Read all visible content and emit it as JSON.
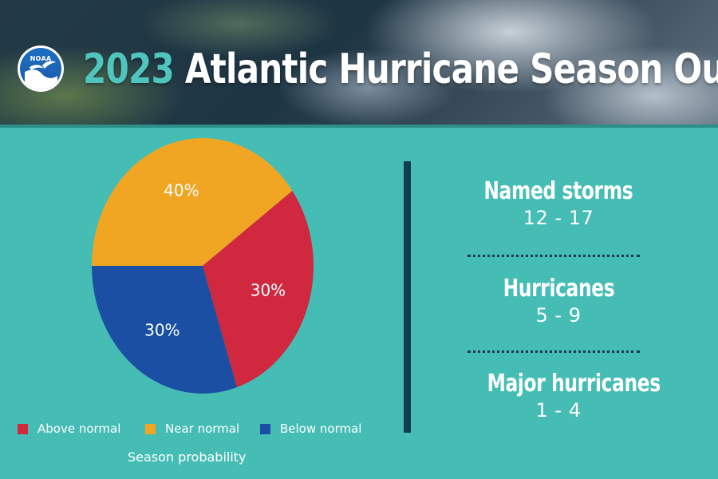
{
  "header": {
    "title_year": "2023",
    "title_rest": "Atlantic Hurricane Season Outlook",
    "logo_text": "NOAA"
  },
  "chart_data": {
    "type": "pie",
    "title": "Season probability",
    "slices": [
      {
        "label": "Above normal",
        "value": 30,
        "display": "30%",
        "color": "#d0283f"
      },
      {
        "label": "Near normal",
        "value": 40,
        "display": "40%",
        "color": "#f0a623"
      },
      {
        "label": "Below normal",
        "value": 30,
        "display": "30%",
        "color": "#1b4fa3"
      }
    ],
    "legend_position": "bottom"
  },
  "stats": [
    {
      "label": "Named storms",
      "value": "12 - 17"
    },
    {
      "label": "Hurricanes",
      "value": "5 - 9"
    },
    {
      "label": "Major hurricanes",
      "value": "1 - 4"
    }
  ],
  "colors": {
    "background": "#45bdb5",
    "accent_dark": "#133d4e",
    "year_accent": "#4fc6bd"
  }
}
